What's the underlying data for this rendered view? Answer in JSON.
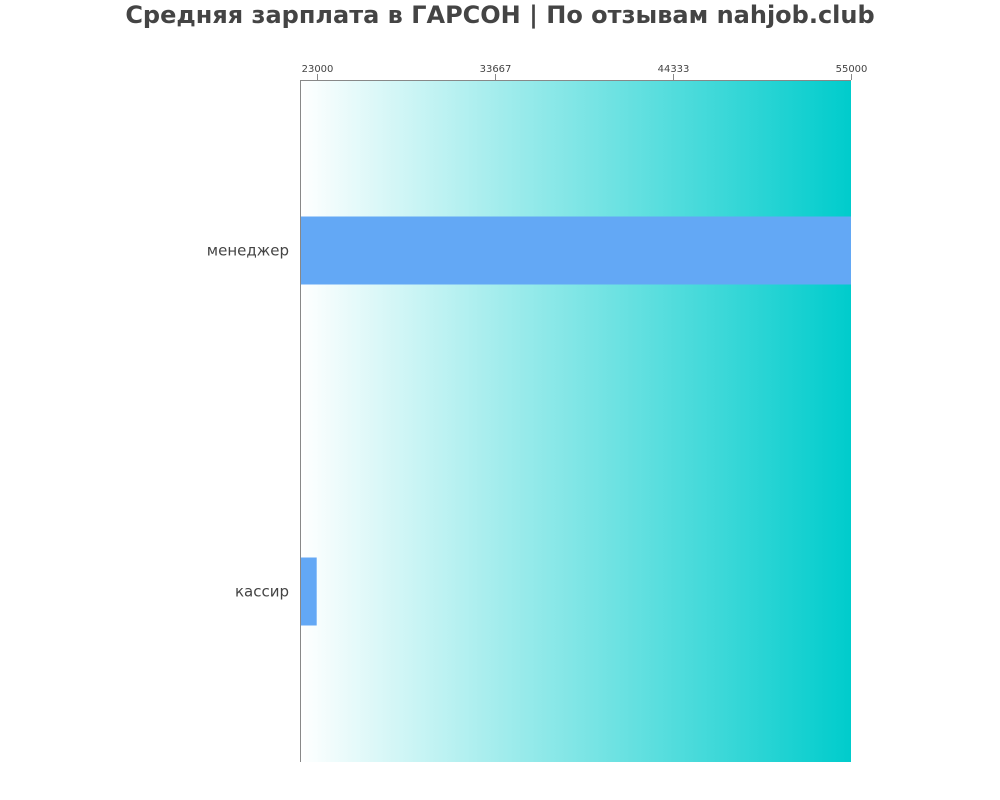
{
  "chart_data": {
    "type": "bar",
    "orientation": "horizontal",
    "title": "Средняя зарплата в ГАРСОН | По отзывам nahjob.club",
    "categories": [
      "менеджер",
      "кассир"
    ],
    "values": [
      55000,
      23000
    ],
    "xlim": [
      22000,
      55000
    ],
    "xticks": [
      "23000",
      "33667",
      "44333",
      "55000"
    ],
    "xtick_values": [
      23000,
      33667,
      44333,
      55000
    ],
    "axis_position": "top",
    "grid": false,
    "bar_color": "#63a8f5",
    "background_gradient": [
      "#ffffff",
      "#00cccc"
    ]
  }
}
